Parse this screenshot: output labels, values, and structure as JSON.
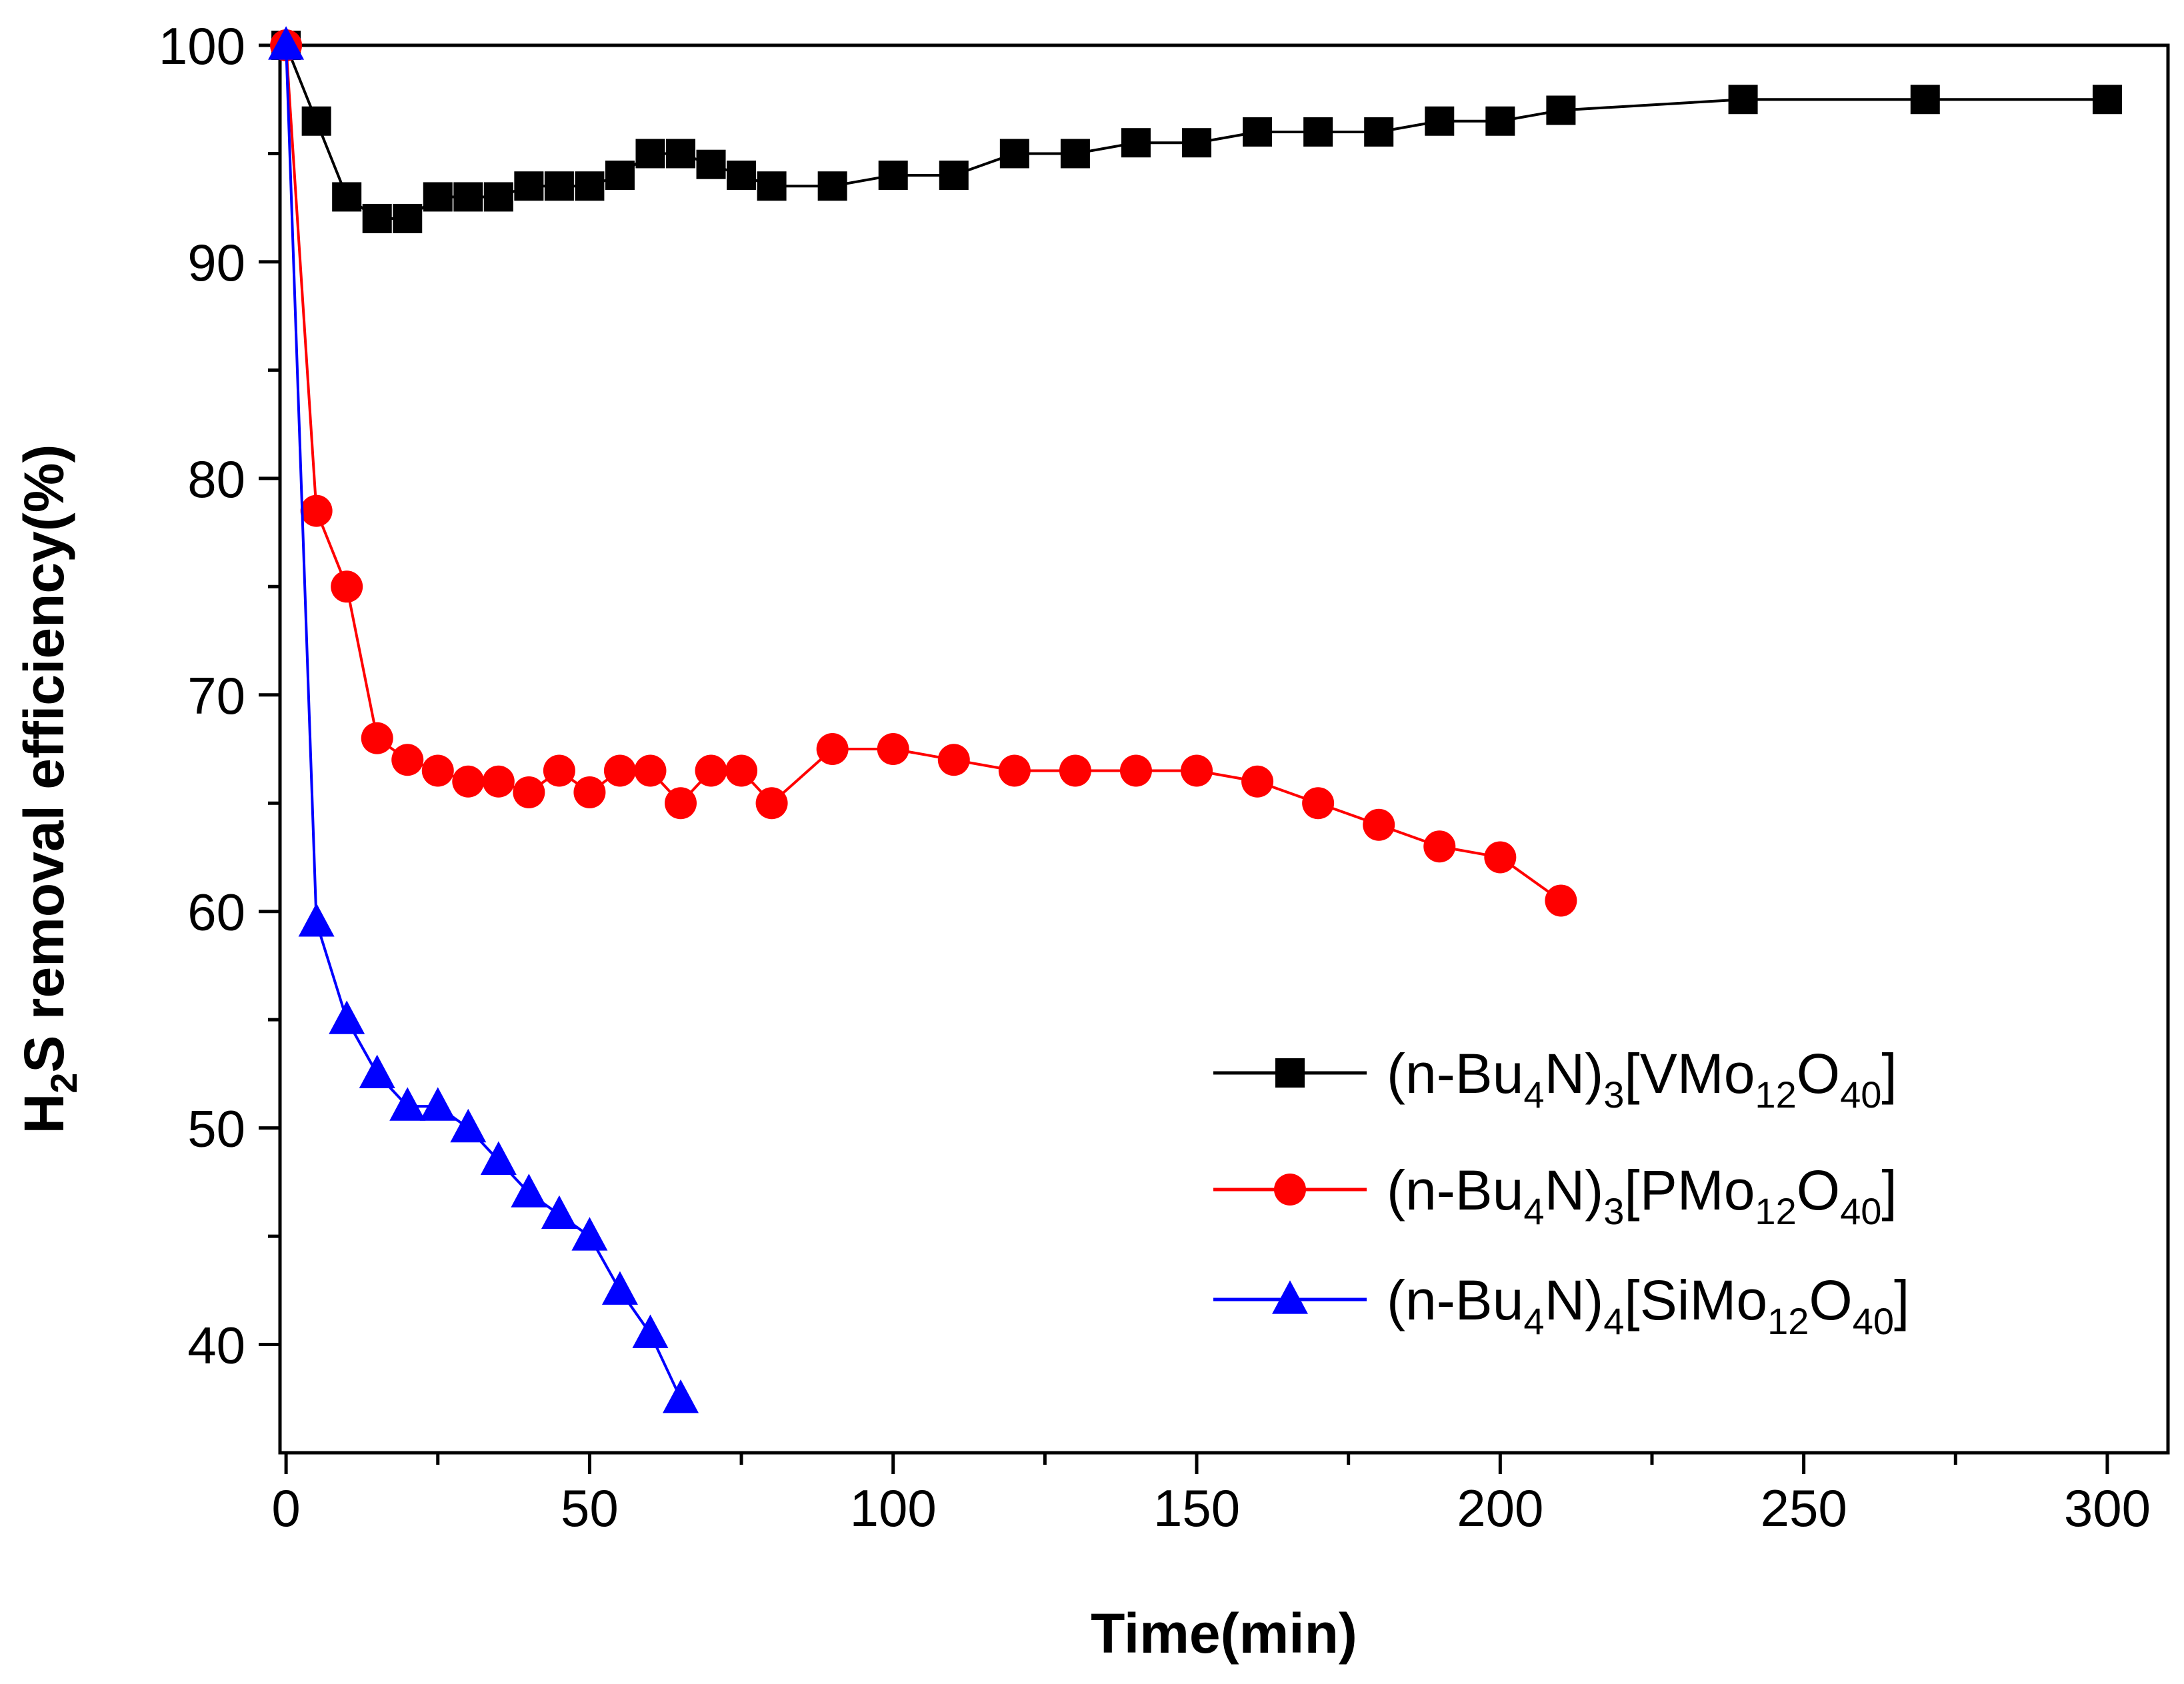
{
  "chart_data": {
    "type": "line",
    "xlabel": "Time(min)",
    "ylabel": {
      "base": "H",
      "sub": "2",
      "rest": "S removal efficiency(%)"
    },
    "xlim": [
      -1,
      310
    ],
    "ylim": [
      35,
      100
    ],
    "x_major_ticks": [
      0,
      50,
      100,
      150,
      200,
      250,
      300
    ],
    "x_tick_labels": [
      "0",
      "50",
      "100",
      "150",
      "200",
      "250",
      "300"
    ],
    "y_major_ticks": [
      40,
      50,
      60,
      70,
      80,
      90,
      100
    ],
    "y_tick_labels": [
      "40",
      "50",
      "60",
      "70",
      "80",
      "90",
      "100"
    ],
    "grid": false,
    "legend_position": "right-lower-middle",
    "series": [
      {
        "name": "(n-Bu4N)3[VMo12O40]",
        "name_parts": [
          [
            "(n-Bu",
            ""
          ],
          [
            "4",
            "sub"
          ],
          [
            "N)",
            ""
          ],
          [
            "3",
            "sub"
          ],
          [
            "[VMo",
            ""
          ],
          [
            "12",
            "sub"
          ],
          [
            "O",
            ""
          ],
          [
            "40",
            "sub"
          ],
          [
            "]",
            ""
          ]
        ],
        "color": "#000000",
        "marker": "square",
        "x": [
          0,
          5,
          10,
          15,
          20,
          25,
          30,
          35,
          40,
          45,
          50,
          55,
          60,
          65,
          70,
          75,
          80,
          90,
          100,
          110,
          120,
          130,
          140,
          150,
          160,
          170,
          180,
          190,
          200,
          210,
          240,
          270,
          300
        ],
        "y": [
          100,
          96.5,
          93,
          92,
          92,
          93,
          93,
          93,
          93.5,
          93.5,
          93.5,
          94,
          95,
          95,
          94.5,
          94,
          93.5,
          93.5,
          94,
          94,
          95,
          95,
          95.5,
          95.5,
          96,
          96,
          96,
          96.5,
          96.5,
          97,
          97.5,
          97.5,
          97.5
        ]
      },
      {
        "name": "(n-Bu4N)3[PMo12O40]",
        "name_parts": [
          [
            "(n-Bu",
            ""
          ],
          [
            "4",
            "sub"
          ],
          [
            "N)",
            ""
          ],
          [
            "3",
            "sub"
          ],
          [
            "[PMo",
            ""
          ],
          [
            "12",
            "sub"
          ],
          [
            "O",
            ""
          ],
          [
            "40",
            "sub"
          ],
          [
            "]",
            ""
          ]
        ],
        "color": "#ff0000",
        "marker": "circle",
        "x": [
          0,
          5,
          10,
          15,
          20,
          25,
          30,
          35,
          40,
          45,
          50,
          55,
          60,
          65,
          70,
          75,
          80,
          90,
          100,
          110,
          120,
          130,
          140,
          150,
          160,
          170,
          180,
          190,
          200,
          210
        ],
        "y": [
          100,
          78.5,
          75,
          68,
          67,
          66.5,
          66,
          66,
          65.5,
          66.5,
          65.5,
          66.5,
          66.5,
          65,
          66.5,
          66.5,
          65,
          67.5,
          67.5,
          67,
          66.5,
          66.5,
          66.5,
          66.5,
          66,
          65,
          64,
          63,
          62.5,
          60.5
        ]
      },
      {
        "name": "(n-Bu4N)4[SiMo12O40]",
        "name_parts": [
          [
            "(n-Bu",
            ""
          ],
          [
            "4",
            "sub"
          ],
          [
            "N)",
            ""
          ],
          [
            "4",
            "sub"
          ],
          [
            "[SiMo",
            ""
          ],
          [
            "12",
            "sub"
          ],
          [
            "O",
            ""
          ],
          [
            "40",
            "sub"
          ],
          [
            "]",
            ""
          ]
        ],
        "color": "#0000ff",
        "marker": "triangle",
        "x": [
          0,
          5,
          10,
          15,
          20,
          25,
          30,
          35,
          40,
          45,
          50,
          55,
          60,
          65
        ],
        "y": [
          100,
          59.5,
          55,
          52.5,
          51,
          51,
          50,
          48.5,
          47,
          46,
          45,
          42.5,
          40.5,
          37.5
        ]
      }
    ]
  }
}
